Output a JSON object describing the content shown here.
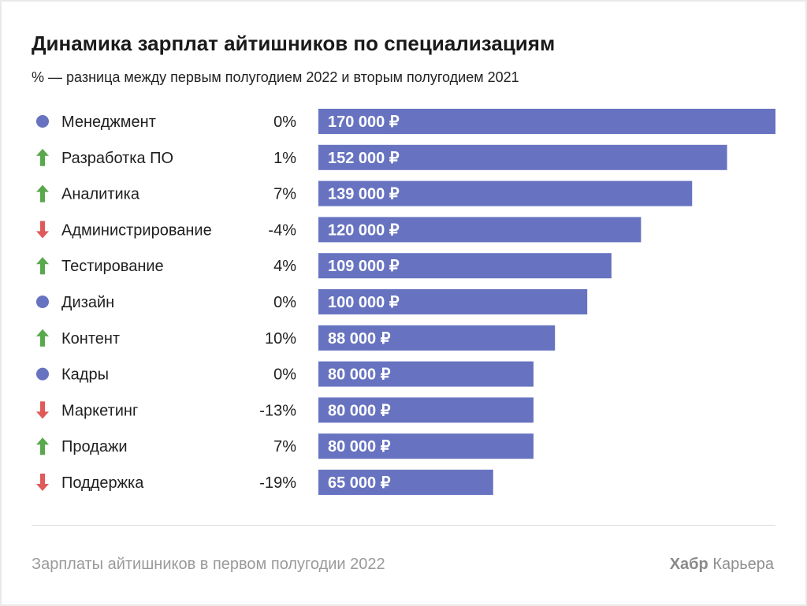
{
  "header": {
    "title": "Динамика зарплат айтишников по специализациям",
    "subtitle": "% — разница между первым полугодием 2022 и вторым полугодием 2021"
  },
  "footer": {
    "source": "Зарплаты айтишников в первом полугодии 2022",
    "brand_bold": "Хабр",
    "brand_rest": "Карьера"
  },
  "colors": {
    "bar": "#6773c0",
    "up": "#5aa84d",
    "down": "#e05a5a",
    "neutral": "#6773c0"
  },
  "chart_data": {
    "type": "bar",
    "orientation": "horizontal",
    "title": "Динамика зарплат айтишников по специализациям",
    "subtitle": "% — разница между первым полугодием 2022 и вторым полугодием 2021",
    "xlim": [
      0,
      170000
    ],
    "grid": false,
    "categories": [
      "Менеджмент",
      "Разработка ПО",
      "Аналитика",
      "Администрирование",
      "Тестирование",
      "Дизайн",
      "Контент",
      "Кадры",
      "Маркетинг",
      "Продажи",
      "Поддержка"
    ],
    "values": [
      170000,
      152000,
      139000,
      120000,
      109000,
      100000,
      88000,
      80000,
      80000,
      80000,
      65000
    ],
    "value_labels": [
      "170 000 ₽",
      "152 000 ₽",
      "139 000 ₽",
      "120 000 ₽",
      "109 000 ₽",
      "100 000 ₽",
      "88 000 ₽",
      "80 000 ₽",
      "80 000 ₽",
      "80 000 ₽",
      "65 000 ₽"
    ],
    "changes": [
      "0%",
      "1%",
      "7%",
      "-4%",
      "4%",
      "0%",
      "10%",
      "0%",
      "-13%",
      "7%",
      "-19%"
    ],
    "trend_icons": [
      "neutral",
      "up",
      "up",
      "down",
      "up",
      "neutral",
      "up",
      "neutral",
      "down",
      "up",
      "down"
    ]
  }
}
